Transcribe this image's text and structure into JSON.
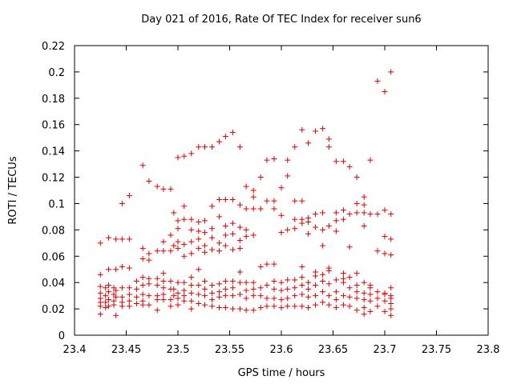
{
  "chart_data": {
    "type": "scatter",
    "title": "Day 021 of 2016, Rate Of TEC Index for receiver sun6",
    "xlabel": "GPS time / hours",
    "ylabel": "ROTI / TECUs",
    "xlim": [
      23.4,
      23.8
    ],
    "ylim": [
      0,
      0.22
    ],
    "x_ticks": [
      "23.4",
      "23.45",
      "23.5",
      "23.55",
      "23.6",
      "23.65",
      "23.7",
      "23.75",
      "23.8"
    ],
    "y_ticks": [
      "0",
      "0.02",
      "0.04",
      "0.06",
      "0.08",
      "0.1",
      "0.12",
      "0.14",
      "0.16",
      "0.18",
      "0.2",
      "0.22"
    ],
    "grid": false,
    "marker": "plus",
    "color": "#dd0000",
    "points": [
      [
        23.425,
        0.07
      ],
      [
        23.425,
        0.046
      ],
      [
        23.425,
        0.037
      ],
      [
        23.425,
        0.032
      ],
      [
        23.425,
        0.028
      ],
      [
        23.425,
        0.025
      ],
      [
        23.425,
        0.022
      ],
      [
        23.425,
        0.016
      ],
      [
        23.43,
        0.036
      ],
      [
        23.43,
        0.03
      ],
      [
        23.43,
        0.025
      ],
      [
        23.43,
        0.021
      ],
      [
        23.433,
        0.074
      ],
      [
        23.433,
        0.05
      ],
      [
        23.433,
        0.038
      ],
      [
        23.433,
        0.033
      ],
      [
        23.433,
        0.027
      ],
      [
        23.433,
        0.022
      ],
      [
        23.438,
        0.036
      ],
      [
        23.438,
        0.031
      ],
      [
        23.438,
        0.026
      ],
      [
        23.438,
        0.023
      ],
      [
        23.44,
        0.073
      ],
      [
        23.44,
        0.05
      ],
      [
        23.44,
        0.034
      ],
      [
        23.44,
        0.029
      ],
      [
        23.44,
        0.015
      ],
      [
        23.446,
        0.1
      ],
      [
        23.446,
        0.073
      ],
      [
        23.446,
        0.052
      ],
      [
        23.446,
        0.036
      ],
      [
        23.446,
        0.029
      ],
      [
        23.446,
        0.025
      ],
      [
        23.446,
        0.022
      ],
      [
        23.453,
        0.106
      ],
      [
        23.453,
        0.073
      ],
      [
        23.453,
        0.051
      ],
      [
        23.453,
        0.036
      ],
      [
        23.453,
        0.031
      ],
      [
        23.453,
        0.026
      ],
      [
        23.453,
        0.022
      ],
      [
        23.46,
        0.041
      ],
      [
        23.46,
        0.035
      ],
      [
        23.46,
        0.029
      ],
      [
        23.46,
        0.024
      ],
      [
        23.466,
        0.129
      ],
      [
        23.466,
        0.066
      ],
      [
        23.466,
        0.058
      ],
      [
        23.466,
        0.044
      ],
      [
        23.466,
        0.038
      ],
      [
        23.466,
        0.031
      ],
      [
        23.466,
        0.026
      ],
      [
        23.466,
        0.023
      ],
      [
        23.472,
        0.117
      ],
      [
        23.472,
        0.062
      ],
      [
        23.472,
        0.057
      ],
      [
        23.472,
        0.043
      ],
      [
        23.472,
        0.039
      ],
      [
        23.472,
        0.03
      ],
      [
        23.472,
        0.023
      ],
      [
        23.48,
        0.113
      ],
      [
        23.48,
        0.064
      ],
      [
        23.48,
        0.043
      ],
      [
        23.48,
        0.038
      ],
      [
        23.48,
        0.03
      ],
      [
        23.48,
        0.027
      ],
      [
        23.48,
        0.019
      ],
      [
        23.486,
        0.111
      ],
      [
        23.486,
        0.071
      ],
      [
        23.486,
        0.064
      ],
      [
        23.486,
        0.047
      ],
      [
        23.486,
        0.041
      ],
      [
        23.486,
        0.036
      ],
      [
        23.486,
        0.031
      ],
      [
        23.486,
        0.027
      ],
      [
        23.493,
        0.111
      ],
      [
        23.493,
        0.076
      ],
      [
        23.493,
        0.064
      ],
      [
        23.493,
        0.041
      ],
      [
        23.493,
        0.035
      ],
      [
        23.493,
        0.027
      ],
      [
        23.493,
        0.022
      ],
      [
        23.496,
        0.093
      ],
      [
        23.496,
        0.068
      ],
      [
        23.496,
        0.035
      ],
      [
        23.496,
        0.03
      ],
      [
        23.5,
        0.135
      ],
      [
        23.5,
        0.087
      ],
      [
        23.5,
        0.081
      ],
      [
        23.5,
        0.071
      ],
      [
        23.5,
        0.066
      ],
      [
        23.5,
        0.04
      ],
      [
        23.5,
        0.032
      ],
      [
        23.5,
        0.028
      ],
      [
        23.5,
        0.023
      ],
      [
        23.506,
        0.136
      ],
      [
        23.506,
        0.098
      ],
      [
        23.506,
        0.088
      ],
      [
        23.506,
        0.069
      ],
      [
        23.506,
        0.06
      ],
      [
        23.506,
        0.04
      ],
      [
        23.506,
        0.034
      ],
      [
        23.506,
        0.03
      ],
      [
        23.506,
        0.026
      ],
      [
        23.513,
        0.138
      ],
      [
        23.513,
        0.088
      ],
      [
        23.513,
        0.08
      ],
      [
        23.513,
        0.071
      ],
      [
        23.513,
        0.062
      ],
      [
        23.513,
        0.044
      ],
      [
        23.513,
        0.038
      ],
      [
        23.513,
        0.032
      ],
      [
        23.513,
        0.026
      ],
      [
        23.513,
        0.02
      ],
      [
        23.52,
        0.143
      ],
      [
        23.52,
        0.086
      ],
      [
        23.52,
        0.079
      ],
      [
        23.52,
        0.073
      ],
      [
        23.52,
        0.066
      ],
      [
        23.52,
        0.05
      ],
      [
        23.52,
        0.038
      ],
      [
        23.52,
        0.031
      ],
      [
        23.52,
        0.024
      ],
      [
        23.526,
        0.143
      ],
      [
        23.526,
        0.087
      ],
      [
        23.526,
        0.078
      ],
      [
        23.526,
        0.068
      ],
      [
        23.526,
        0.063
      ],
      [
        23.526,
        0.041
      ],
      [
        23.526,
        0.035
      ],
      [
        23.526,
        0.03
      ],
      [
        23.526,
        0.023
      ],
      [
        23.533,
        0.143
      ],
      [
        23.533,
        0.098
      ],
      [
        23.533,
        0.081
      ],
      [
        23.533,
        0.074
      ],
      [
        23.533,
        0.065
      ],
      [
        23.533,
        0.038
      ],
      [
        23.533,
        0.032
      ],
      [
        23.533,
        0.027
      ],
      [
        23.533,
        0.022
      ],
      [
        23.54,
        0.147
      ],
      [
        23.54,
        0.103
      ],
      [
        23.54,
        0.09
      ],
      [
        23.54,
        0.07
      ],
      [
        23.54,
        0.064
      ],
      [
        23.54,
        0.039
      ],
      [
        23.54,
        0.033
      ],
      [
        23.54,
        0.029
      ],
      [
        23.54,
        0.021
      ],
      [
        23.546,
        0.151
      ],
      [
        23.546,
        0.103
      ],
      [
        23.546,
        0.083
      ],
      [
        23.546,
        0.076
      ],
      [
        23.546,
        0.068
      ],
      [
        23.546,
        0.041
      ],
      [
        23.546,
        0.035
      ],
      [
        23.546,
        0.03
      ],
      [
        23.546,
        0.021
      ],
      [
        23.553,
        0.154
      ],
      [
        23.553,
        0.103
      ],
      [
        23.553,
        0.085
      ],
      [
        23.553,
        0.077
      ],
      [
        23.553,
        0.065
      ],
      [
        23.553,
        0.041
      ],
      [
        23.553,
        0.036
      ],
      [
        23.553,
        0.03
      ],
      [
        23.553,
        0.02
      ],
      [
        23.56,
        0.143
      ],
      [
        23.56,
        0.099
      ],
      [
        23.56,
        0.082
      ],
      [
        23.56,
        0.072
      ],
      [
        23.56,
        0.066
      ],
      [
        23.56,
        0.048
      ],
      [
        23.56,
        0.04
      ],
      [
        23.56,
        0.031
      ],
      [
        23.56,
        0.02
      ],
      [
        23.566,
        0.113
      ],
      [
        23.566,
        0.096
      ],
      [
        23.566,
        0.08
      ],
      [
        23.566,
        0.075
      ],
      [
        23.566,
        0.04
      ],
      [
        23.566,
        0.034
      ],
      [
        23.566,
        0.028
      ],
      [
        23.566,
        0.019
      ],
      [
        23.573,
        0.11
      ],
      [
        23.573,
        0.105
      ],
      [
        23.573,
        0.096
      ],
      [
        23.573,
        0.076
      ],
      [
        23.573,
        0.04
      ],
      [
        23.573,
        0.035
      ],
      [
        23.573,
        0.03
      ],
      [
        23.573,
        0.019
      ],
      [
        23.58,
        0.12
      ],
      [
        23.58,
        0.096
      ],
      [
        23.58,
        0.052
      ],
      [
        23.58,
        0.036
      ],
      [
        23.58,
        0.03
      ],
      [
        23.58,
        0.021
      ],
      [
        23.586,
        0.133
      ],
      [
        23.586,
        0.102
      ],
      [
        23.586,
        0.054
      ],
      [
        23.586,
        0.038
      ],
      [
        23.586,
        0.028
      ],
      [
        23.586,
        0.022
      ],
      [
        23.593,
        0.134
      ],
      [
        23.593,
        0.102
      ],
      [
        23.593,
        0.096
      ],
      [
        23.593,
        0.054
      ],
      [
        23.593,
        0.041
      ],
      [
        23.593,
        0.035
      ],
      [
        23.593,
        0.028
      ],
      [
        23.593,
        0.022
      ],
      [
        23.6,
        0.112
      ],
      [
        23.6,
        0.091
      ],
      [
        23.6,
        0.078
      ],
      [
        23.6,
        0.04
      ],
      [
        23.6,
        0.034
      ],
      [
        23.6,
        0.027
      ],
      [
        23.6,
        0.021
      ],
      [
        23.606,
        0.133
      ],
      [
        23.606,
        0.08
      ],
      [
        23.606,
        0.042
      ],
      [
        23.606,
        0.035
      ],
      [
        23.606,
        0.028
      ],
      [
        23.606,
        0.022
      ],
      [
        23.613,
        0.143
      ],
      [
        23.613,
        0.088
      ],
      [
        23.613,
        0.081
      ],
      [
        23.613,
        0.042
      ],
      [
        23.613,
        0.036
      ],
      [
        23.613,
        0.03
      ],
      [
        23.613,
        0.022
      ],
      [
        23.62,
        0.156
      ],
      [
        23.62,
        0.088
      ],
      [
        23.62,
        0.085
      ],
      [
        23.62,
        0.044
      ],
      [
        23.62,
        0.038
      ],
      [
        23.62,
        0.031
      ],
      [
        23.62,
        0.022
      ],
      [
        23.626,
        0.146
      ],
      [
        23.626,
        0.089
      ],
      [
        23.626,
        0.086
      ],
      [
        23.626,
        0.04
      ],
      [
        23.626,
        0.035
      ],
      [
        23.626,
        0.029
      ],
      [
        23.626,
        0.021
      ],
      [
        23.633,
        0.155
      ],
      [
        23.633,
        0.082
      ],
      [
        23.633,
        0.045
      ],
      [
        23.633,
        0.038
      ],
      [
        23.633,
        0.03
      ],
      [
        23.633,
        0.023
      ],
      [
        23.64,
        0.157
      ],
      [
        23.64,
        0.093
      ],
      [
        23.64,
        0.08
      ],
      [
        23.64,
        0.046
      ],
      [
        23.64,
        0.041
      ],
      [
        23.64,
        0.033
      ],
      [
        23.64,
        0.025
      ],
      [
        23.646,
        0.149
      ],
      [
        23.646,
        0.083
      ],
      [
        23.646,
        0.051
      ],
      [
        23.646,
        0.039
      ],
      [
        23.646,
        0.03
      ],
      [
        23.646,
        0.023
      ],
      [
        23.653,
        0.132
      ],
      [
        23.653,
        0.093
      ],
      [
        23.653,
        0.079
      ],
      [
        23.653,
        0.042
      ],
      [
        23.653,
        0.033
      ],
      [
        23.653,
        0.027
      ],
      [
        23.653,
        0.021
      ],
      [
        23.66,
        0.132
      ],
      [
        23.66,
        0.095
      ],
      [
        23.66,
        0.047
      ],
      [
        23.66,
        0.04
      ],
      [
        23.66,
        0.03
      ],
      [
        23.66,
        0.023
      ],
      [
        23.666,
        0.128
      ],
      [
        23.666,
        0.092
      ],
      [
        23.666,
        0.044
      ],
      [
        23.666,
        0.036
      ],
      [
        23.666,
        0.029
      ],
      [
        23.666,
        0.022
      ],
      [
        23.673,
        0.12
      ],
      [
        23.673,
        0.093
      ],
      [
        23.673,
        0.038
      ],
      [
        23.673,
        0.033
      ],
      [
        23.673,
        0.028
      ],
      [
        23.673,
        0.019
      ],
      [
        23.68,
        0.105
      ],
      [
        23.68,
        0.099
      ],
      [
        23.68,
        0.093
      ],
      [
        23.68,
        0.04
      ],
      [
        23.68,
        0.032
      ],
      [
        23.68,
        0.027
      ],
      [
        23.68,
        0.021
      ],
      [
        23.68,
        0.016
      ],
      [
        23.686,
        0.092
      ],
      [
        23.686,
        0.036
      ],
      [
        23.686,
        0.031
      ],
      [
        23.686,
        0.026
      ],
      [
        23.686,
        0.018
      ],
      [
        23.693,
        0.193
      ],
      [
        23.693,
        0.064
      ],
      [
        23.693,
        0.033
      ],
      [
        23.693,
        0.028
      ],
      [
        23.693,
        0.022
      ],
      [
        23.7,
        0.185
      ],
      [
        23.7,
        0.075
      ],
      [
        23.7,
        0.062
      ],
      [
        23.7,
        0.031
      ],
      [
        23.7,
        0.026
      ],
      [
        23.7,
        0.018
      ],
      [
        23.706,
        0.2
      ],
      [
        23.706,
        0.073
      ],
      [
        23.706,
        0.061
      ],
      [
        23.706,
        0.036
      ],
      [
        23.706,
        0.03
      ],
      [
        23.706,
        0.024
      ],
      [
        23.706,
        0.02
      ],
      [
        23.706,
        0.015
      ],
      [
        23.606,
        0.121
      ],
      [
        23.62,
        0.102
      ],
      [
        23.633,
        0.092
      ],
      [
        23.646,
        0.143
      ],
      [
        23.66,
        0.088
      ],
      [
        23.673,
        0.1
      ],
      [
        23.686,
        0.133
      ],
      [
        23.7,
        0.095
      ],
      [
        23.613,
        0.102
      ],
      [
        23.626,
        0.077
      ],
      [
        23.64,
        0.068
      ],
      [
        23.653,
        0.087
      ],
      [
        23.666,
        0.067
      ],
      [
        23.68,
        0.083
      ],
      [
        23.693,
        0.092
      ],
      [
        23.706,
        0.092
      ],
      [
        23.62,
        0.052
      ],
      [
        23.633,
        0.048
      ],
      [
        23.646,
        0.049
      ],
      [
        23.66,
        0.043
      ],
      [
        23.673,
        0.047
      ],
      [
        23.686,
        0.038
      ],
      [
        23.7,
        0.032
      ],
      [
        23.706,
        0.028
      ]
    ]
  }
}
